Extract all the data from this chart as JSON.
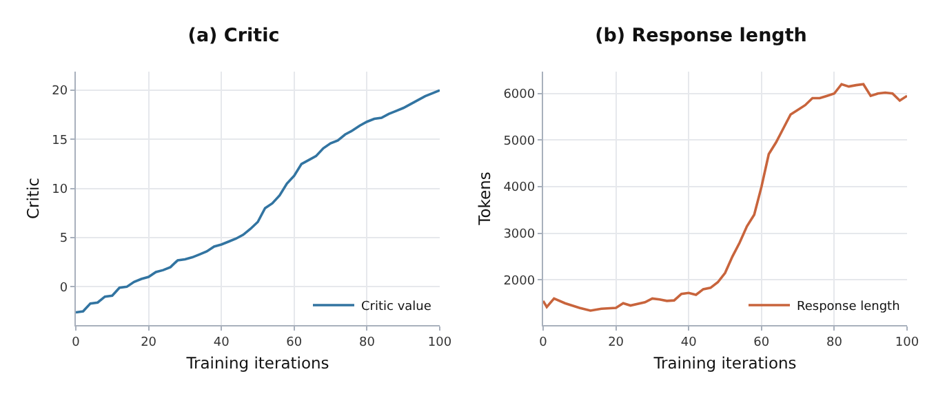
{
  "chart_data": [
    {
      "type": "line",
      "title": "(a) Critic",
      "xlabel": "Training iterations",
      "ylabel": "Critic",
      "x": [
        0,
        2,
        4,
        6,
        8,
        10,
        12,
        14,
        16,
        18,
        20,
        22,
        24,
        26,
        28,
        30,
        32,
        34,
        36,
        38,
        40,
        42,
        44,
        46,
        48,
        50,
        52,
        54,
        56,
        58,
        60,
        62,
        64,
        66,
        68,
        70,
        72,
        74,
        76,
        78,
        80,
        82,
        84,
        86,
        88,
        90,
        92,
        94,
        96,
        98,
        100
      ],
      "series": [
        {
          "name": "Critic value",
          "color": "#3274a1",
          "values": [
            -2.6,
            -2.5,
            -1.7,
            -1.6,
            -1.0,
            -0.9,
            -0.1,
            0.0,
            0.5,
            0.8,
            1.0,
            1.5,
            1.7,
            2.0,
            2.7,
            2.8,
            3.0,
            3.3,
            3.6,
            4.1,
            4.3,
            4.6,
            4.9,
            5.3,
            5.9,
            6.6,
            8.0,
            8.5,
            9.3,
            10.5,
            11.3,
            12.5,
            12.9,
            13.3,
            14.1,
            14.6,
            14.9,
            15.5,
            15.9,
            16.4,
            16.8,
            17.1,
            17.2,
            17.6,
            17.9,
            18.2,
            18.6,
            19.0,
            19.4,
            19.7,
            20.0
          ]
        }
      ],
      "xlim": [
        0,
        100
      ],
      "xticks": [
        0,
        20,
        40,
        60,
        80,
        100
      ],
      "ylim": [
        -3.9,
        21.9
      ],
      "yticks": [
        0,
        5,
        10,
        15,
        20
      ],
      "grid": true,
      "legend": "bottom right",
      "line_style": "solid"
    },
    {
      "type": "line",
      "title": "(b) Response length",
      "xlabel": "Training iterations",
      "ylabel": "Tokens",
      "x": [
        0,
        1,
        3,
        6,
        10,
        13,
        16,
        20,
        22,
        24,
        28,
        30,
        32,
        34,
        36,
        38,
        40,
        42,
        44,
        46,
        48,
        50,
        52,
        54,
        56,
        58,
        60,
        62,
        64,
        66,
        68,
        70,
        72,
        74,
        76,
        78,
        80,
        82,
        84,
        86,
        88,
        90,
        92,
        94,
        96,
        98,
        100
      ],
      "series": [
        {
          "name": "Response length",
          "color": "#c8643c",
          "values": [
            1550,
            1420,
            1600,
            1500,
            1400,
            1340,
            1380,
            1400,
            1500,
            1450,
            1520,
            1600,
            1580,
            1550,
            1560,
            1700,
            1720,
            1680,
            1800,
            1830,
            1950,
            2150,
            2500,
            2800,
            3150,
            3400,
            4000,
            4700,
            4950,
            5250,
            5550,
            5650,
            5750,
            5900,
            5900,
            5950,
            6000,
            6200,
            6150,
            6180,
            6200,
            5950,
            6000,
            6020,
            6000,
            5850,
            5950
          ]
        }
      ],
      "xlim": [
        0,
        100
      ],
      "xticks": [
        0,
        20,
        40,
        60,
        80,
        100
      ],
      "ylim": [
        1030,
        6470
      ],
      "yticks": [
        2000,
        3000,
        4000,
        5000,
        6000
      ],
      "grid": true,
      "legend": "bottom right",
      "line_style": "solid"
    }
  ]
}
